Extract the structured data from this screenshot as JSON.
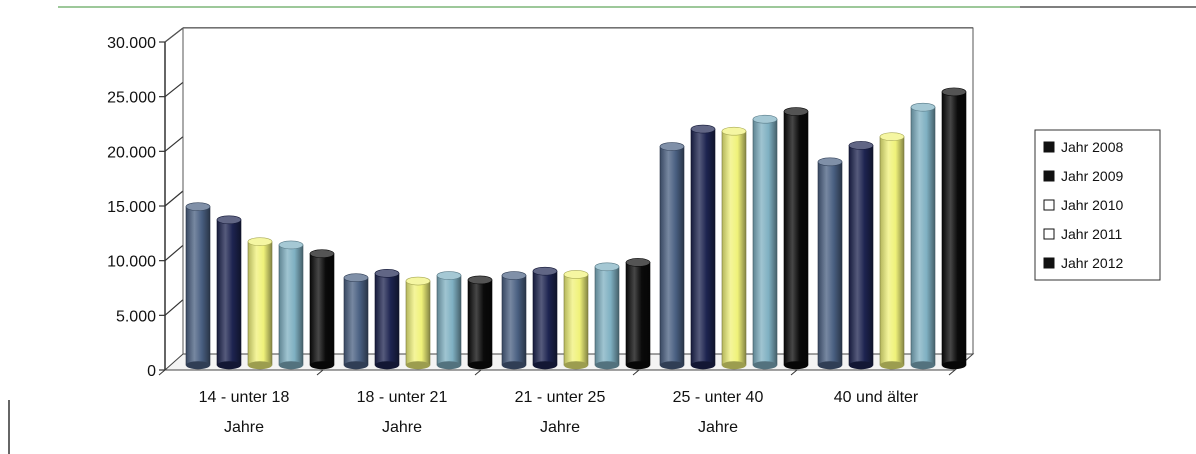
{
  "chart_data": {
    "type": "bar",
    "categories": [
      [
        "14 - unter 18",
        "Jahre"
      ],
      [
        "18 - unter 21",
        "Jahre"
      ],
      [
        "21 - unter 25",
        "Jahre"
      ],
      [
        "25 - unter 40",
        "Jahre"
      ],
      [
        "40 und älter"
      ]
    ],
    "series": [
      {
        "name": "Jahr 2008",
        "color": "#4a6082",
        "values": [
          14500,
          8000,
          8200,
          20000,
          18600
        ]
      },
      {
        "name": "Jahr 2009",
        "color": "#1d2450",
        "values": [
          13300,
          8400,
          8600,
          21600,
          20100
        ]
      },
      {
        "name": "Jahr 2010",
        "color": "#f0f27a",
        "values": [
          11300,
          7700,
          8300,
          21400,
          20900
        ]
      },
      {
        "name": "Jahr 2011",
        "color": "#7fb0c2",
        "values": [
          11000,
          8200,
          9000,
          22500,
          23600
        ]
      },
      {
        "name": "Jahr 2012",
        "color": "#0a0a0a",
        "values": [
          10200,
          7800,
          9400,
          23200,
          25000
        ]
      }
    ],
    "yticks": [
      "0",
      "5.000",
      "10.000",
      "15.000",
      "20.000",
      "25.000",
      "30.000"
    ],
    "ylim": [
      0,
      30000
    ],
    "grid": true,
    "legend": "right",
    "style": "3d-cylinder"
  }
}
